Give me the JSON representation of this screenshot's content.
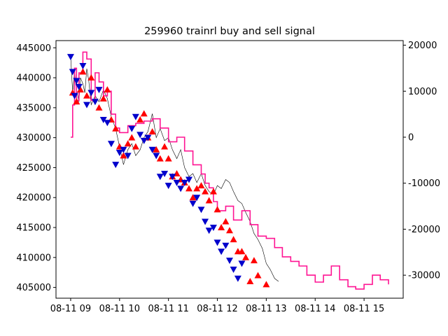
{
  "chart_data": {
    "type": "line",
    "title": "259960 trainrl buy and sell signal",
    "xlabel": "",
    "ylabel": "",
    "y2label": "",
    "x_tick_labels": [
      "08-11 09",
      "08-11 10",
      "08-11 11",
      "08-11 12",
      "08-11 13",
      "08-11 14",
      "08-11 15"
    ],
    "x_ticks_hours": [
      9,
      10,
      11,
      12,
      13,
      14,
      15
    ],
    "xlim_hours": [
      8.7,
      15.8
    ],
    "ylim": [
      403200,
      446200
    ],
    "y_ticks": [
      405000,
      410000,
      415000,
      420000,
      425000,
      430000,
      435000,
      440000,
      445000
    ],
    "y2lim": [
      -35000,
      21000
    ],
    "y2_ticks": [
      -30000,
      -20000,
      -10000,
      0,
      10000,
      20000
    ],
    "grid": false,
    "colors": {
      "price": "#000000",
      "portfolio": "#ff1493",
      "buy": "#ff0000",
      "sell": "#0000cc",
      "frame": "#000000"
    },
    "series": [
      {
        "axis": "left",
        "style": "thin-black-line",
        "points": [
          [
            9.0,
            443500
          ],
          [
            9.04,
            437500
          ],
          [
            9.08,
            441000
          ],
          [
            9.12,
            438000
          ],
          [
            9.17,
            436000
          ],
          [
            9.2,
            440000
          ],
          [
            9.25,
            439000
          ],
          [
            9.29,
            437500
          ],
          [
            9.33,
            441500
          ],
          [
            9.37,
            439500
          ],
          [
            9.42,
            435500
          ],
          [
            9.5,
            437000
          ],
          [
            9.58,
            436000
          ],
          [
            9.67,
            438000
          ],
          [
            9.75,
            436500
          ],
          [
            9.83,
            433500
          ],
          [
            9.92,
            431500
          ],
          [
            10.0,
            428500
          ],
          [
            10.08,
            425500
          ],
          [
            10.17,
            428000
          ],
          [
            10.25,
            429000
          ],
          [
            10.33,
            427000
          ],
          [
            10.42,
            428000
          ],
          [
            10.5,
            430000
          ],
          [
            10.58,
            431000
          ],
          [
            10.67,
            434000
          ],
          [
            10.75,
            430000
          ],
          [
            10.83,
            431500
          ],
          [
            10.92,
            429500
          ],
          [
            11.0,
            430000
          ],
          [
            11.08,
            428000
          ],
          [
            11.17,
            426500
          ],
          [
            11.25,
            428000
          ],
          [
            11.33,
            425000
          ],
          [
            11.42,
            423500
          ],
          [
            11.5,
            424000
          ],
          [
            11.58,
            422500
          ],
          [
            11.67,
            424000
          ],
          [
            11.75,
            422000
          ],
          [
            11.83,
            421000
          ],
          [
            11.92,
            420500
          ],
          [
            12.0,
            422000
          ],
          [
            12.08,
            421500
          ],
          [
            12.17,
            423000
          ],
          [
            12.25,
            422500
          ],
          [
            12.33,
            421000
          ],
          [
            12.42,
            419500
          ],
          [
            12.5,
            419000
          ],
          [
            12.58,
            417500
          ],
          [
            12.67,
            416000
          ],
          [
            12.75,
            414000
          ],
          [
            12.83,
            413000
          ],
          [
            12.92,
            411500
          ],
          [
            13.0,
            409000
          ],
          [
            13.08,
            408000
          ],
          [
            13.17,
            406500
          ],
          [
            13.25,
            406000
          ]
        ]
      },
      {
        "axis": "right",
        "style": "magenta-step-line",
        "points": [
          [
            9.0,
            0
          ],
          [
            9.04,
            7000
          ],
          [
            9.08,
            15000
          ],
          [
            9.12,
            8000
          ],
          [
            9.17,
            14000
          ],
          [
            9.25,
            18500
          ],
          [
            9.33,
            17000
          ],
          [
            9.42,
            8000
          ],
          [
            9.5,
            14000
          ],
          [
            9.58,
            12000
          ],
          [
            9.67,
            9000
          ],
          [
            9.75,
            10000
          ],
          [
            9.83,
            5000
          ],
          [
            9.92,
            2000
          ],
          [
            10.0,
            1000
          ],
          [
            10.17,
            2500
          ],
          [
            10.33,
            3000
          ],
          [
            10.5,
            3500
          ],
          [
            10.67,
            4000
          ],
          [
            10.83,
            2000
          ],
          [
            11.0,
            -1000
          ],
          [
            11.17,
            0
          ],
          [
            11.33,
            -3000
          ],
          [
            11.5,
            -6000
          ],
          [
            11.67,
            -8000
          ],
          [
            11.75,
            -10000
          ],
          [
            11.83,
            -11000
          ],
          [
            11.92,
            -14000
          ],
          [
            12.0,
            -16000
          ],
          [
            12.17,
            -15000
          ],
          [
            12.33,
            -18000
          ],
          [
            12.5,
            -16000
          ],
          [
            12.67,
            -19000
          ],
          [
            12.83,
            -21500
          ],
          [
            13.0,
            -22000
          ],
          [
            13.17,
            -24000
          ],
          [
            13.33,
            -26000
          ],
          [
            13.5,
            -27000
          ],
          [
            13.67,
            -28000
          ],
          [
            13.83,
            -30000
          ],
          [
            14.0,
            -31500
          ],
          [
            14.17,
            -30000
          ],
          [
            14.33,
            -28000
          ],
          [
            14.5,
            -31000
          ],
          [
            14.67,
            -32500
          ],
          [
            14.83,
            -33000
          ],
          [
            15.0,
            -32000
          ],
          [
            15.17,
            -30000
          ],
          [
            15.33,
            -31000
          ],
          [
            15.5,
            -32000
          ]
        ]
      }
    ],
    "buy_signals": [
      [
        9.04,
        437500
      ],
      [
        9.12,
        436000
      ],
      [
        9.2,
        438000
      ],
      [
        9.25,
        441000
      ],
      [
        9.33,
        437000
      ],
      [
        9.42,
        440000
      ],
      [
        9.58,
        435000
      ],
      [
        9.67,
        436500
      ],
      [
        9.75,
        438000
      ],
      [
        9.83,
        433000
      ],
      [
        9.92,
        431500
      ],
      [
        10.0,
        428500
      ],
      [
        10.08,
        427000
      ],
      [
        10.17,
        429000
      ],
      [
        10.25,
        430000
      ],
      [
        10.33,
        428500
      ],
      [
        10.42,
        433000
      ],
      [
        10.5,
        434000
      ],
      [
        10.58,
        430000
      ],
      [
        10.67,
        431000
      ],
      [
        10.75,
        428000
      ],
      [
        10.83,
        426500
      ],
      [
        10.92,
        428500
      ],
      [
        11.0,
        426500
      ],
      [
        11.08,
        423500
      ],
      [
        11.17,
        424000
      ],
      [
        11.25,
        423000
      ],
      [
        11.33,
        422500
      ],
      [
        11.42,
        421500
      ],
      [
        11.5,
        420000
      ],
      [
        11.58,
        421500
      ],
      [
        11.67,
        422000
      ],
      [
        11.75,
        421000
      ],
      [
        11.83,
        419500
      ],
      [
        11.92,
        421000
      ],
      [
        12.0,
        418000
      ],
      [
        12.08,
        415000
      ],
      [
        12.17,
        416000
      ],
      [
        12.25,
        414500
      ],
      [
        12.33,
        413000
      ],
      [
        12.42,
        411000
      ],
      [
        12.5,
        411000
      ],
      [
        12.58,
        410000
      ],
      [
        12.67,
        406000
      ],
      [
        12.75,
        409500
      ],
      [
        12.83,
        407000
      ],
      [
        13.0,
        405500
      ]
    ],
    "sell_signals": [
      [
        9.0,
        443500
      ],
      [
        9.04,
        441000
      ],
      [
        9.08,
        437000
      ],
      [
        9.12,
        439500
      ],
      [
        9.17,
        438500
      ],
      [
        9.25,
        442000
      ],
      [
        9.33,
        435500
      ],
      [
        9.42,
        437500
      ],
      [
        9.5,
        436000
      ],
      [
        9.58,
        438000
      ],
      [
        9.67,
        433000
      ],
      [
        9.75,
        432500
      ],
      [
        9.83,
        429000
      ],
      [
        9.92,
        425500
      ],
      [
        10.0,
        427500
      ],
      [
        10.08,
        428000
      ],
      [
        10.17,
        427000
      ],
      [
        10.25,
        431500
      ],
      [
        10.33,
        433500
      ],
      [
        10.42,
        430500
      ],
      [
        10.5,
        429500
      ],
      [
        10.58,
        430000
      ],
      [
        10.67,
        428000
      ],
      [
        10.75,
        427000
      ],
      [
        10.83,
        423500
      ],
      [
        10.92,
        424000
      ],
      [
        11.0,
        422000
      ],
      [
        11.08,
        423500
      ],
      [
        11.17,
        422500
      ],
      [
        11.25,
        421500
      ],
      [
        11.33,
        422500
      ],
      [
        11.42,
        423000
      ],
      [
        11.5,
        419000
      ],
      [
        11.58,
        420000
      ],
      [
        11.67,
        418000
      ],
      [
        11.75,
        416000
      ],
      [
        11.83,
        414500
      ],
      [
        11.92,
        415000
      ],
      [
        12.0,
        412500
      ],
      [
        12.08,
        411000
      ],
      [
        12.17,
        412000
      ],
      [
        12.25,
        409500
      ],
      [
        12.33,
        408000
      ],
      [
        12.42,
        406500
      ],
      [
        12.5,
        409000
      ]
    ]
  }
}
